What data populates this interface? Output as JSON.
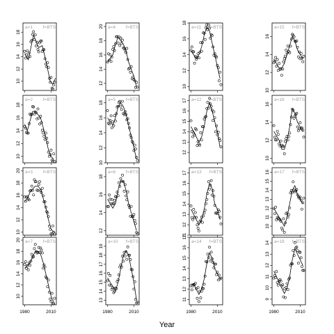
{
  "chart_data": {
    "type": "scatter",
    "xlabel": "Year",
    "x_ticks": [
      1980,
      2010
    ],
    "xlim": [
      1978,
      2016
    ],
    "layout": "4 rows x 4 columns",
    "colors": {
      "points": "#000000",
      "line": "#000000",
      "panel_label": "#a0a0a0"
    },
    "panels": [
      {
        "label": "a=1",
        "tag": "f=BTS",
        "ylim": [
          8.5,
          19.5
        ],
        "yticks": [
          10,
          12,
          14,
          16,
          18
        ],
        "trend": [
          [
            1980,
            14.5
          ],
          [
            1984,
            13.5
          ],
          [
            1987,
            15.5
          ],
          [
            1990,
            17.5
          ],
          [
            1993,
            16.5
          ],
          [
            1996,
            15.5
          ],
          [
            2000,
            15.8
          ],
          [
            2003,
            14
          ],
          [
            2006,
            12
          ],
          [
            2009,
            10
          ],
          [
            2012,
            9.5
          ],
          [
            2015,
            10.5
          ]
        ]
      },
      {
        "label": "a=4",
        "tag": "f=BTS",
        "ylim": [
          11,
          20.5
        ],
        "yticks": [
          12,
          14,
          16,
          18,
          20
        ],
        "trend": [
          [
            1980,
            15
          ],
          [
            1983,
            15.5
          ],
          [
            1986,
            16
          ],
          [
            1989,
            17.5
          ],
          [
            1992,
            18.5
          ],
          [
            1995,
            18
          ],
          [
            1998,
            17.5
          ],
          [
            2001,
            16.5
          ],
          [
            2004,
            15
          ],
          [
            2007,
            14
          ],
          [
            2010,
            13
          ],
          [
            2013,
            11.5
          ]
        ]
      },
      {
        "label": "a=11",
        "tag": "f=BTS",
        "ylim": [
          9.5,
          18
        ],
        "yticks": [
          10,
          12,
          14,
          16,
          18
        ],
        "trend": [
          [
            1980,
            14.5
          ],
          [
            1983,
            14
          ],
          [
            1986,
            13.5
          ],
          [
            1989,
            14
          ],
          [
            1992,
            15
          ],
          [
            1995,
            16.5
          ],
          [
            1998,
            17.5
          ],
          [
            2001,
            17
          ],
          [
            2004,
            15.5
          ],
          [
            2007,
            14
          ],
          [
            2010,
            12.5
          ],
          [
            2013,
            11
          ]
        ]
      },
      {
        "label": "a=15",
        "tag": "f=BTS",
        "ylim": [
          10,
          17.5
        ],
        "yticks": [
          10,
          12,
          14,
          16
        ],
        "trend": [
          [
            1980,
            13.5
          ],
          [
            1983,
            13
          ],
          [
            1986,
            12.5
          ],
          [
            1989,
            12.5
          ],
          [
            1992,
            13
          ],
          [
            1995,
            14
          ],
          [
            1998,
            15
          ],
          [
            2001,
            16
          ],
          [
            2004,
            15.5
          ],
          [
            2007,
            14.5
          ],
          [
            2010,
            14
          ],
          [
            2013,
            13.5
          ]
        ]
      },
      {
        "label": "a=2",
        "tag": "f=BTS",
        "ylim": [
          9,
          19.5
        ],
        "yticks": [
          10,
          12,
          14,
          16,
          18
        ],
        "trend": [
          [
            1980,
            15
          ],
          [
            1983,
            14
          ],
          [
            1986,
            15.5
          ],
          [
            1989,
            17
          ],
          [
            1992,
            17
          ],
          [
            1995,
            16.5
          ],
          [
            1998,
            16
          ],
          [
            2001,
            14.5
          ],
          [
            2004,
            13
          ],
          [
            2007,
            11
          ],
          [
            2010,
            10
          ],
          [
            2013,
            9.5
          ]
        ]
      },
      {
        "label": "a=5",
        "tag": "f=BTS",
        "ylim": [
          10,
          19
        ],
        "yticks": [
          10,
          12,
          14,
          16,
          18
        ],
        "trend": [
          [
            1980,
            16
          ],
          [
            1983,
            15.5
          ],
          [
            1986,
            15
          ],
          [
            1989,
            16
          ],
          [
            1992,
            17.5
          ],
          [
            1995,
            18
          ],
          [
            1998,
            17.5
          ],
          [
            2001,
            16.5
          ],
          [
            2004,
            15
          ],
          [
            2007,
            13.5
          ],
          [
            2010,
            12
          ],
          [
            2013,
            10.5
          ]
        ]
      },
      {
        "label": "a=12",
        "tag": "f=BTS",
        "ylim": [
          11,
          17.5
        ],
        "yticks": [
          12,
          13,
          14,
          15,
          16,
          17
        ],
        "trend": [
          [
            1980,
            14.5
          ],
          [
            1983,
            14
          ],
          [
            1986,
            13.5
          ],
          [
            1989,
            13
          ],
          [
            1992,
            13.5
          ],
          [
            1995,
            14.5
          ],
          [
            1998,
            16
          ],
          [
            2001,
            16.8
          ],
          [
            2004,
            16
          ],
          [
            2007,
            15
          ],
          [
            2010,
            14
          ],
          [
            2013,
            12.5
          ]
        ]
      },
      {
        "label": "a=16",
        "tag": "f=BTS",
        "ylim": [
          9.5,
          17
        ],
        "yticks": [
          10,
          12,
          14,
          16
        ],
        "trend": [
          [
            1980,
            13
          ],
          [
            1983,
            12.5
          ],
          [
            1986,
            12
          ],
          [
            1989,
            11
          ],
          [
            1992,
            11
          ],
          [
            1995,
            12
          ],
          [
            1998,
            13.5
          ],
          [
            2001,
            15.5
          ],
          [
            2004,
            15
          ],
          [
            2007,
            14
          ],
          [
            2010,
            13.5
          ],
          [
            2013,
            13
          ]
        ]
      },
      {
        "label": "a=3",
        "tag": "f=BTS",
        "ylim": [
          9.5,
          20.5
        ],
        "yticks": [
          10,
          12,
          14,
          16,
          18,
          20
        ],
        "trend": [
          [
            1980,
            15
          ],
          [
            1983,
            15.5
          ],
          [
            1986,
            16.5
          ],
          [
            1989,
            17
          ],
          [
            1992,
            17.5
          ],
          [
            1995,
            17.5
          ],
          [
            1998,
            17
          ],
          [
            2001,
            15.5
          ],
          [
            2004,
            14
          ],
          [
            2007,
            12
          ],
          [
            2010,
            10.5
          ],
          [
            2013,
            10
          ]
        ]
      },
      {
        "label": "a=6",
        "tag": "f=BTS",
        "ylim": [
          11.5,
          19
        ],
        "yticks": [
          12,
          14,
          16,
          18
        ],
        "trend": [
          [
            1980,
            15.5
          ],
          [
            1983,
            15
          ],
          [
            1986,
            14.5
          ],
          [
            1989,
            15
          ],
          [
            1992,
            16.5
          ],
          [
            1995,
            17.5
          ],
          [
            1998,
            17.5
          ],
          [
            2001,
            16.5
          ],
          [
            2004,
            15
          ],
          [
            2007,
            14
          ],
          [
            2010,
            13
          ],
          [
            2013,
            12
          ]
        ]
      },
      {
        "label": "a=13",
        "tag": "f=BTS",
        "ylim": [
          11,
          17.5
        ],
        "yticks": [
          11,
          12,
          13,
          14,
          15,
          16,
          17
        ],
        "trend": [
          [
            1980,
            13.5
          ],
          [
            1983,
            13
          ],
          [
            1986,
            12.5
          ],
          [
            1989,
            12
          ],
          [
            1992,
            12.5
          ],
          [
            1995,
            13.5
          ],
          [
            1998,
            15
          ],
          [
            2001,
            16
          ],
          [
            2004,
            15.5
          ],
          [
            2007,
            14
          ],
          [
            2010,
            13.5
          ],
          [
            2013,
            12.5
          ]
        ]
      },
      {
        "label": "a=17",
        "tag": "f=BTS",
        "ylim": [
          9,
          16.5
        ],
        "yticks": [
          10,
          11,
          12,
          13,
          14,
          15,
          16
        ],
        "trend": [
          [
            1980,
            12
          ],
          [
            1983,
            11.5
          ],
          [
            1986,
            11
          ],
          [
            1989,
            10.5
          ],
          [
            1992,
            10
          ],
          [
            1995,
            11
          ],
          [
            1998,
            12.5
          ],
          [
            2001,
            14
          ],
          [
            2004,
            14.5
          ],
          [
            2007,
            13.5
          ],
          [
            2010,
            13
          ],
          [
            2013,
            12.5
          ]
        ]
      },
      {
        "label": "a=7",
        "tag": "f=BTS",
        "ylim": [
          8.5,
          20.5
        ],
        "yticks": [
          10,
          12,
          14,
          16,
          18,
          20
        ],
        "trend": [
          [
            1980,
            15
          ],
          [
            1983,
            15.5
          ],
          [
            1986,
            16
          ],
          [
            1989,
            17
          ],
          [
            1992,
            18
          ],
          [
            1995,
            18
          ],
          [
            1998,
            17.5
          ],
          [
            2001,
            16
          ],
          [
            2004,
            14
          ],
          [
            2007,
            12
          ],
          [
            2010,
            10
          ],
          [
            2013,
            9
          ]
        ]
      },
      {
        "label": "a=10",
        "tag": "f=BTS",
        "ylim": [
          12.5,
          20
        ],
        "yticks": [
          13,
          14,
          15,
          16,
          17,
          18,
          19
        ],
        "trend": [
          [
            1980,
            15.5
          ],
          [
            1983,
            15
          ],
          [
            1986,
            14.5
          ],
          [
            1989,
            14
          ],
          [
            1992,
            15
          ],
          [
            1995,
            16.5
          ],
          [
            1998,
            18
          ],
          [
            2001,
            18.5
          ],
          [
            2004,
            18
          ],
          [
            2007,
            16.5
          ],
          [
            2010,
            15
          ],
          [
            2013,
            13
          ]
        ]
      },
      {
        "label": "a=14",
        "tag": "f=BTS",
        "ylim": [
          10.5,
          17
        ],
        "yticks": [
          11,
          12,
          13,
          14,
          15,
          16,
          17
        ],
        "trend": [
          [
            1980,
            12.5
          ],
          [
            1983,
            12.5
          ],
          [
            1986,
            12
          ],
          [
            1989,
            11.5
          ],
          [
            1992,
            12
          ],
          [
            1995,
            13
          ],
          [
            1998,
            14.5
          ],
          [
            2001,
            15.5
          ],
          [
            2004,
            15
          ],
          [
            2007,
            14
          ],
          [
            2010,
            13.5
          ],
          [
            2013,
            13
          ]
        ]
      },
      {
        "label": "a=18",
        "tag": "f=BTS",
        "ylim": [
          8.5,
          14.5
        ],
        "yticks": [
          9,
          10,
          11,
          12,
          13,
          14
        ],
        "trend": [
          [
            1980,
            11.5
          ],
          [
            1983,
            11
          ],
          [
            1986,
            10.5
          ],
          [
            1989,
            10
          ],
          [
            1992,
            9.5
          ],
          [
            1995,
            10
          ],
          [
            1998,
            11
          ],
          [
            2001,
            12.5
          ],
          [
            2004,
            13.5
          ],
          [
            2007,
            13
          ],
          [
            2010,
            12.5
          ],
          [
            2013,
            12
          ]
        ]
      }
    ]
  }
}
